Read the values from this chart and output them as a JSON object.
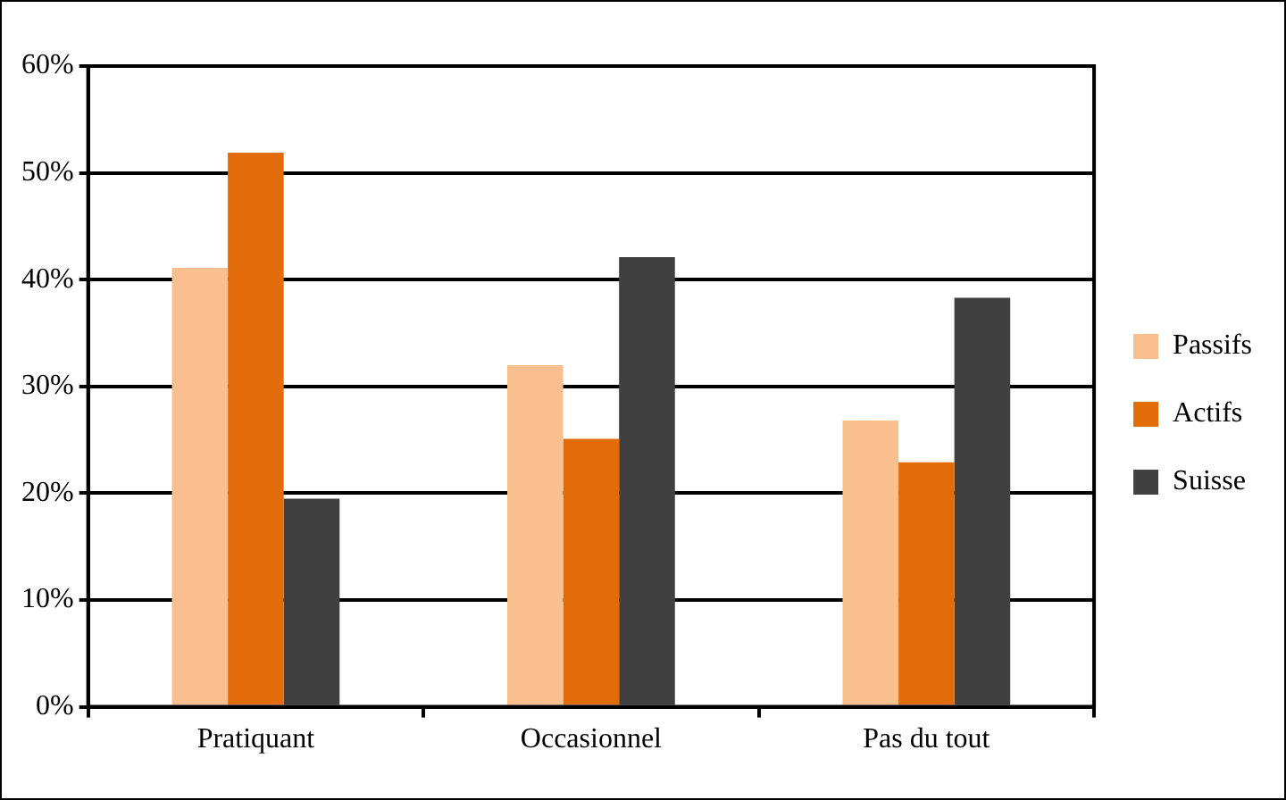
{
  "chart_data": {
    "type": "bar",
    "categories": [
      "Pratiquant",
      "Occasionnel",
      "Pas du tout"
    ],
    "series": [
      {
        "name": "Passifs",
        "color": "#f9bf8f",
        "values": [
          41.1,
          32.0,
          26.8
        ]
      },
      {
        "name": "Actifs",
        "color": "#e36c0a",
        "values": [
          51.9,
          25.1,
          22.9
        ]
      },
      {
        "name": "Suisse",
        "color": "#404040",
        "values": [
          19.5,
          42.1,
          38.3
        ]
      }
    ],
    "ylim": [
      0,
      60
    ],
    "yticks": [
      {
        "value": 0,
        "label": "0%"
      },
      {
        "value": 10,
        "label": "10%"
      },
      {
        "value": 20,
        "label": "20%"
      },
      {
        "value": 30,
        "label": "30%"
      },
      {
        "value": 40,
        "label": "40%"
      },
      {
        "value": 50,
        "label": "50%"
      },
      {
        "value": 60,
        "label": "60%"
      }
    ],
    "grid": "y",
    "legend": "right"
  }
}
